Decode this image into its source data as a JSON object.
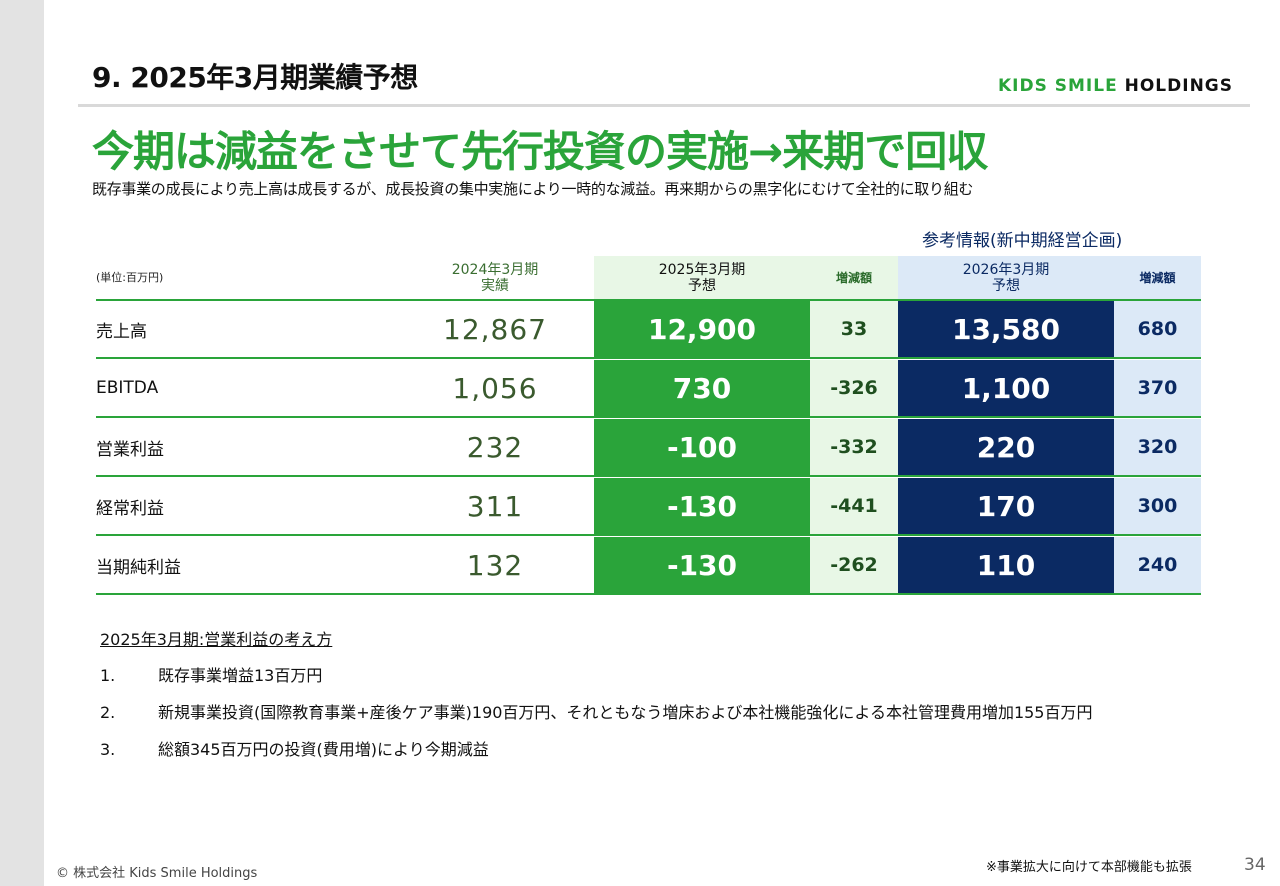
{
  "header": {
    "section_title": "9. 2025年3月期業績予想",
    "logo_part1": "KIDS SMILE",
    "logo_part2": "HOLDINGS",
    "logo_color": "#2aa43a"
  },
  "headline": "今期は減益をさせて先行投資の実施→来期で回収",
  "subtitle": "既存事業の成長により売上高は成長するが、成長投資の集中実施により一時的な減益。再来期からの黒字化にむけて全社的に取り組む",
  "reference_label": "参考情報(新中期経営企画)",
  "table": {
    "unit": "(単位:百万円)",
    "headers": {
      "col1_line1": "2024年3月期",
      "col1_line2": "実績",
      "col2_line1": "2025年3月期",
      "col2_line2": "予想",
      "col3": "増減額",
      "col4_line1": "2026年3月期",
      "col4_line2": "予想",
      "col5": "増減額"
    },
    "rows": [
      {
        "label": "売上高",
        "actual_2024": "12,867",
        "forecast_2025": "12,900",
        "change_2025": "33",
        "forecast_2026": "13,580",
        "change_2026": "680"
      },
      {
        "label": "EBITDA",
        "actual_2024": "1,056",
        "forecast_2025": "730",
        "change_2025": "-326",
        "forecast_2026": "1,100",
        "change_2026": "370"
      },
      {
        "label": "営業利益",
        "actual_2024": "232",
        "forecast_2025": "-100",
        "change_2025": "-332",
        "forecast_2026": "220",
        "change_2026": "320"
      },
      {
        "label": "経常利益",
        "actual_2024": "311",
        "forecast_2025": "-130",
        "change_2025": "-441",
        "forecast_2026": "170",
        "change_2026": "300"
      },
      {
        "label": "当期純利益",
        "actual_2024": "132",
        "forecast_2025": "-130",
        "change_2025": "-262",
        "forecast_2026": "110",
        "change_2026": "240"
      }
    ]
  },
  "notes": {
    "title": "2025年3月期:営業利益の考え方",
    "items": [
      {
        "num": "1.",
        "text": "既存事業増益13百万円"
      },
      {
        "num": "2.",
        "text": "新規事業投資(国際教育事業+産後ケア事業)190百万円、それともなう増床および本社機能強化による本社管理費用増加155百万円"
      },
      {
        "num": "3.",
        "text": "総額345百万円の投資(費用増)により今期減益"
      }
    ]
  },
  "footer": {
    "copyright": "© 株式会社 Kids Smile Holdings",
    "footnote": "※事業拡大に向けて本部機能も拡張",
    "page_number": "34"
  }
}
